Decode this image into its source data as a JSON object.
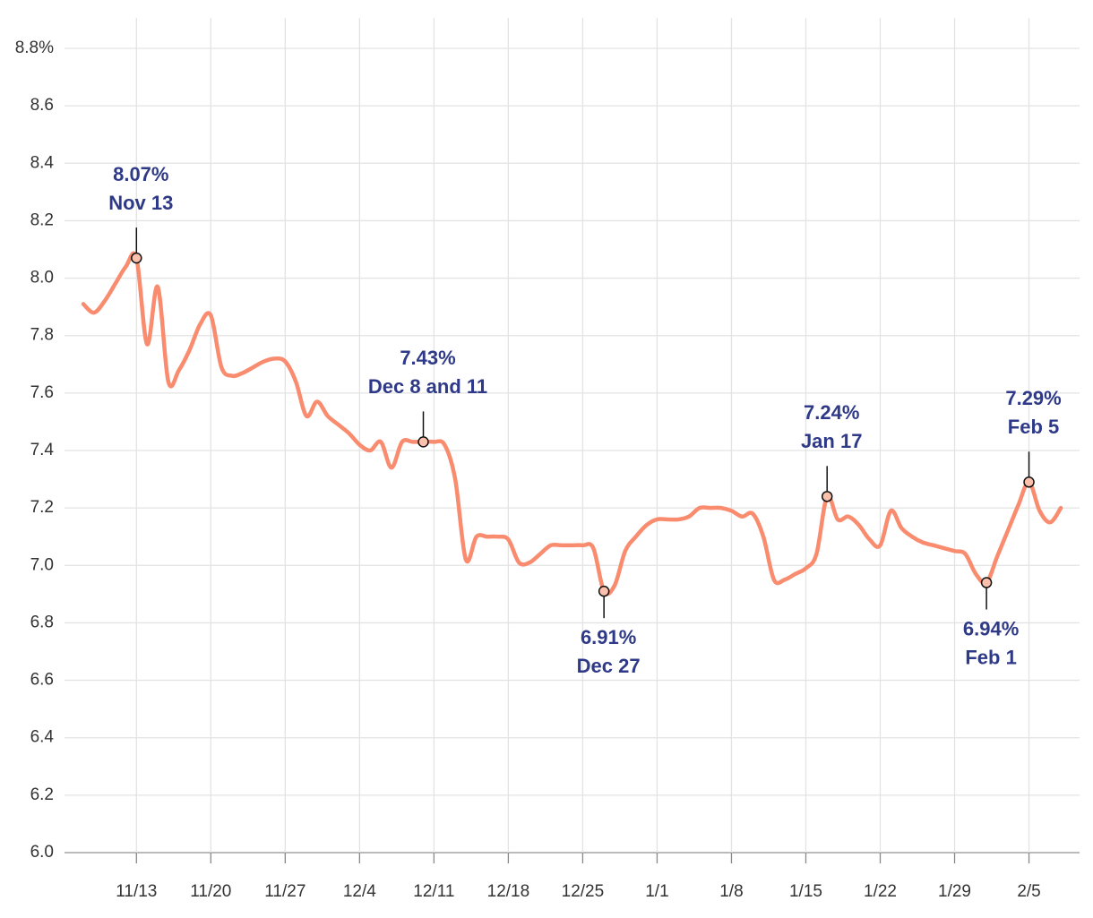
{
  "chart_data": {
    "type": "line",
    "x": [
      "11/8",
      "11/9",
      "11/10",
      "11/11",
      "11/12",
      "11/13",
      "11/14",
      "11/15",
      "11/16",
      "11/17",
      "11/18",
      "11/19",
      "11/20",
      "11/21",
      "11/22",
      "11/23",
      "11/24",
      "11/25",
      "11/26",
      "11/27",
      "11/28",
      "11/29",
      "11/30",
      "12/1",
      "12/2",
      "12/3",
      "12/4",
      "12/5",
      "12/6",
      "12/7",
      "12/8",
      "12/9",
      "12/10",
      "12/11",
      "12/12",
      "12/13",
      "12/14",
      "12/15",
      "12/16",
      "12/17",
      "12/18",
      "12/19",
      "12/20",
      "12/21",
      "12/22",
      "12/23",
      "12/24",
      "12/25",
      "12/26",
      "12/27",
      "12/28",
      "12/29",
      "12/30",
      "12/31",
      "1/1",
      "1/2",
      "1/3",
      "1/4",
      "1/5",
      "1/6",
      "1/7",
      "1/8",
      "1/9",
      "1/10",
      "1/11",
      "1/12",
      "1/13",
      "1/14",
      "1/15",
      "1/16",
      "1/17",
      "1/18",
      "1/19",
      "1/20",
      "1/21",
      "1/22",
      "1/23",
      "1/24",
      "1/25",
      "1/26",
      "1/27",
      "1/28",
      "1/29",
      "1/30",
      "1/31",
      "2/1",
      "2/2",
      "2/3",
      "2/4",
      "2/5",
      "2/6",
      "2/7",
      "2/8"
    ],
    "series": [
      {
        "color": "#f98b6e",
        "values": [
          7.91,
          7.88,
          7.92,
          7.98,
          8.04,
          8.07,
          7.77,
          7.97,
          7.64,
          7.68,
          7.75,
          7.84,
          7.87,
          7.69,
          7.66,
          7.67,
          7.69,
          7.71,
          7.72,
          7.71,
          7.64,
          7.52,
          7.57,
          7.52,
          7.49,
          7.46,
          7.42,
          7.4,
          7.43,
          7.34,
          7.43,
          7.43,
          7.43,
          7.43,
          7.42,
          7.3,
          7.02,
          7.1,
          7.1,
          7.1,
          7.09,
          7.01,
          7.01,
          7.04,
          7.07,
          7.07,
          7.07,
          7.07,
          7.06,
          6.91,
          6.93,
          7.05,
          7.1,
          7.14,
          7.16,
          7.16,
          7.16,
          7.17,
          7.2,
          7.2,
          7.2,
          7.19,
          7.17,
          7.18,
          7.1,
          6.95,
          6.95,
          6.97,
          6.99,
          7.04,
          7.24,
          7.16,
          7.17,
          7.14,
          7.09,
          7.07,
          7.19,
          7.13,
          7.1,
          7.08,
          7.07,
          7.06,
          7.05,
          7.04,
          6.97,
          6.94,
          7.03,
          7.12,
          7.21,
          7.29,
          7.19,
          7.15,
          7.2
        ]
      }
    ],
    "xticks": [
      "11/13",
      "11/20",
      "11/27",
      "12/4",
      "12/11",
      "12/18",
      "12/25",
      "1/1",
      "1/8",
      "1/15",
      "1/22",
      "1/29",
      "2/5"
    ],
    "ylim": [
      6.0,
      8.8
    ],
    "yticks": [
      {
        "value": 6.0,
        "label": "6.0"
      },
      {
        "value": 6.2,
        "label": "6.2"
      },
      {
        "value": 6.4,
        "label": "6.4"
      },
      {
        "value": 6.6,
        "label": "6.6"
      },
      {
        "value": 6.8,
        "label": "6.8"
      },
      {
        "value": 7.0,
        "label": "7.0"
      },
      {
        "value": 7.2,
        "label": "7.2"
      },
      {
        "value": 7.4,
        "label": "7.4"
      },
      {
        "value": 7.6,
        "label": "7.6"
      },
      {
        "value": 7.8,
        "label": "7.8"
      },
      {
        "value": 8.0,
        "label": "8.0"
      },
      {
        "value": 8.2,
        "label": "8.2"
      },
      {
        "value": 8.4,
        "label": "8.4"
      },
      {
        "value": 8.6,
        "label": "8.6"
      },
      {
        "value": 8.8,
        "label": "8.8%"
      }
    ],
    "grid": true,
    "annotations": [
      {
        "x": "11/13",
        "value": 8.07,
        "label": "8.07%",
        "text": "Nov 13",
        "position": "above"
      },
      {
        "x": "12/10",
        "value": 7.43,
        "label": "7.43%",
        "text": "Dec 8 and 11",
        "position": "above"
      },
      {
        "x": "12/27",
        "value": 6.91,
        "label": "6.91%",
        "text": "Dec 27",
        "position": "below"
      },
      {
        "x": "1/17",
        "value": 7.24,
        "label": "7.24%",
        "text": "Jan 17",
        "position": "above"
      },
      {
        "x": "2/1",
        "value": 6.94,
        "label": "6.94%",
        "text": "Feb 1",
        "position": "below"
      },
      {
        "x": "2/5",
        "value": 7.29,
        "label": "7.29%",
        "text": "Feb 5",
        "position": "above"
      }
    ]
  }
}
